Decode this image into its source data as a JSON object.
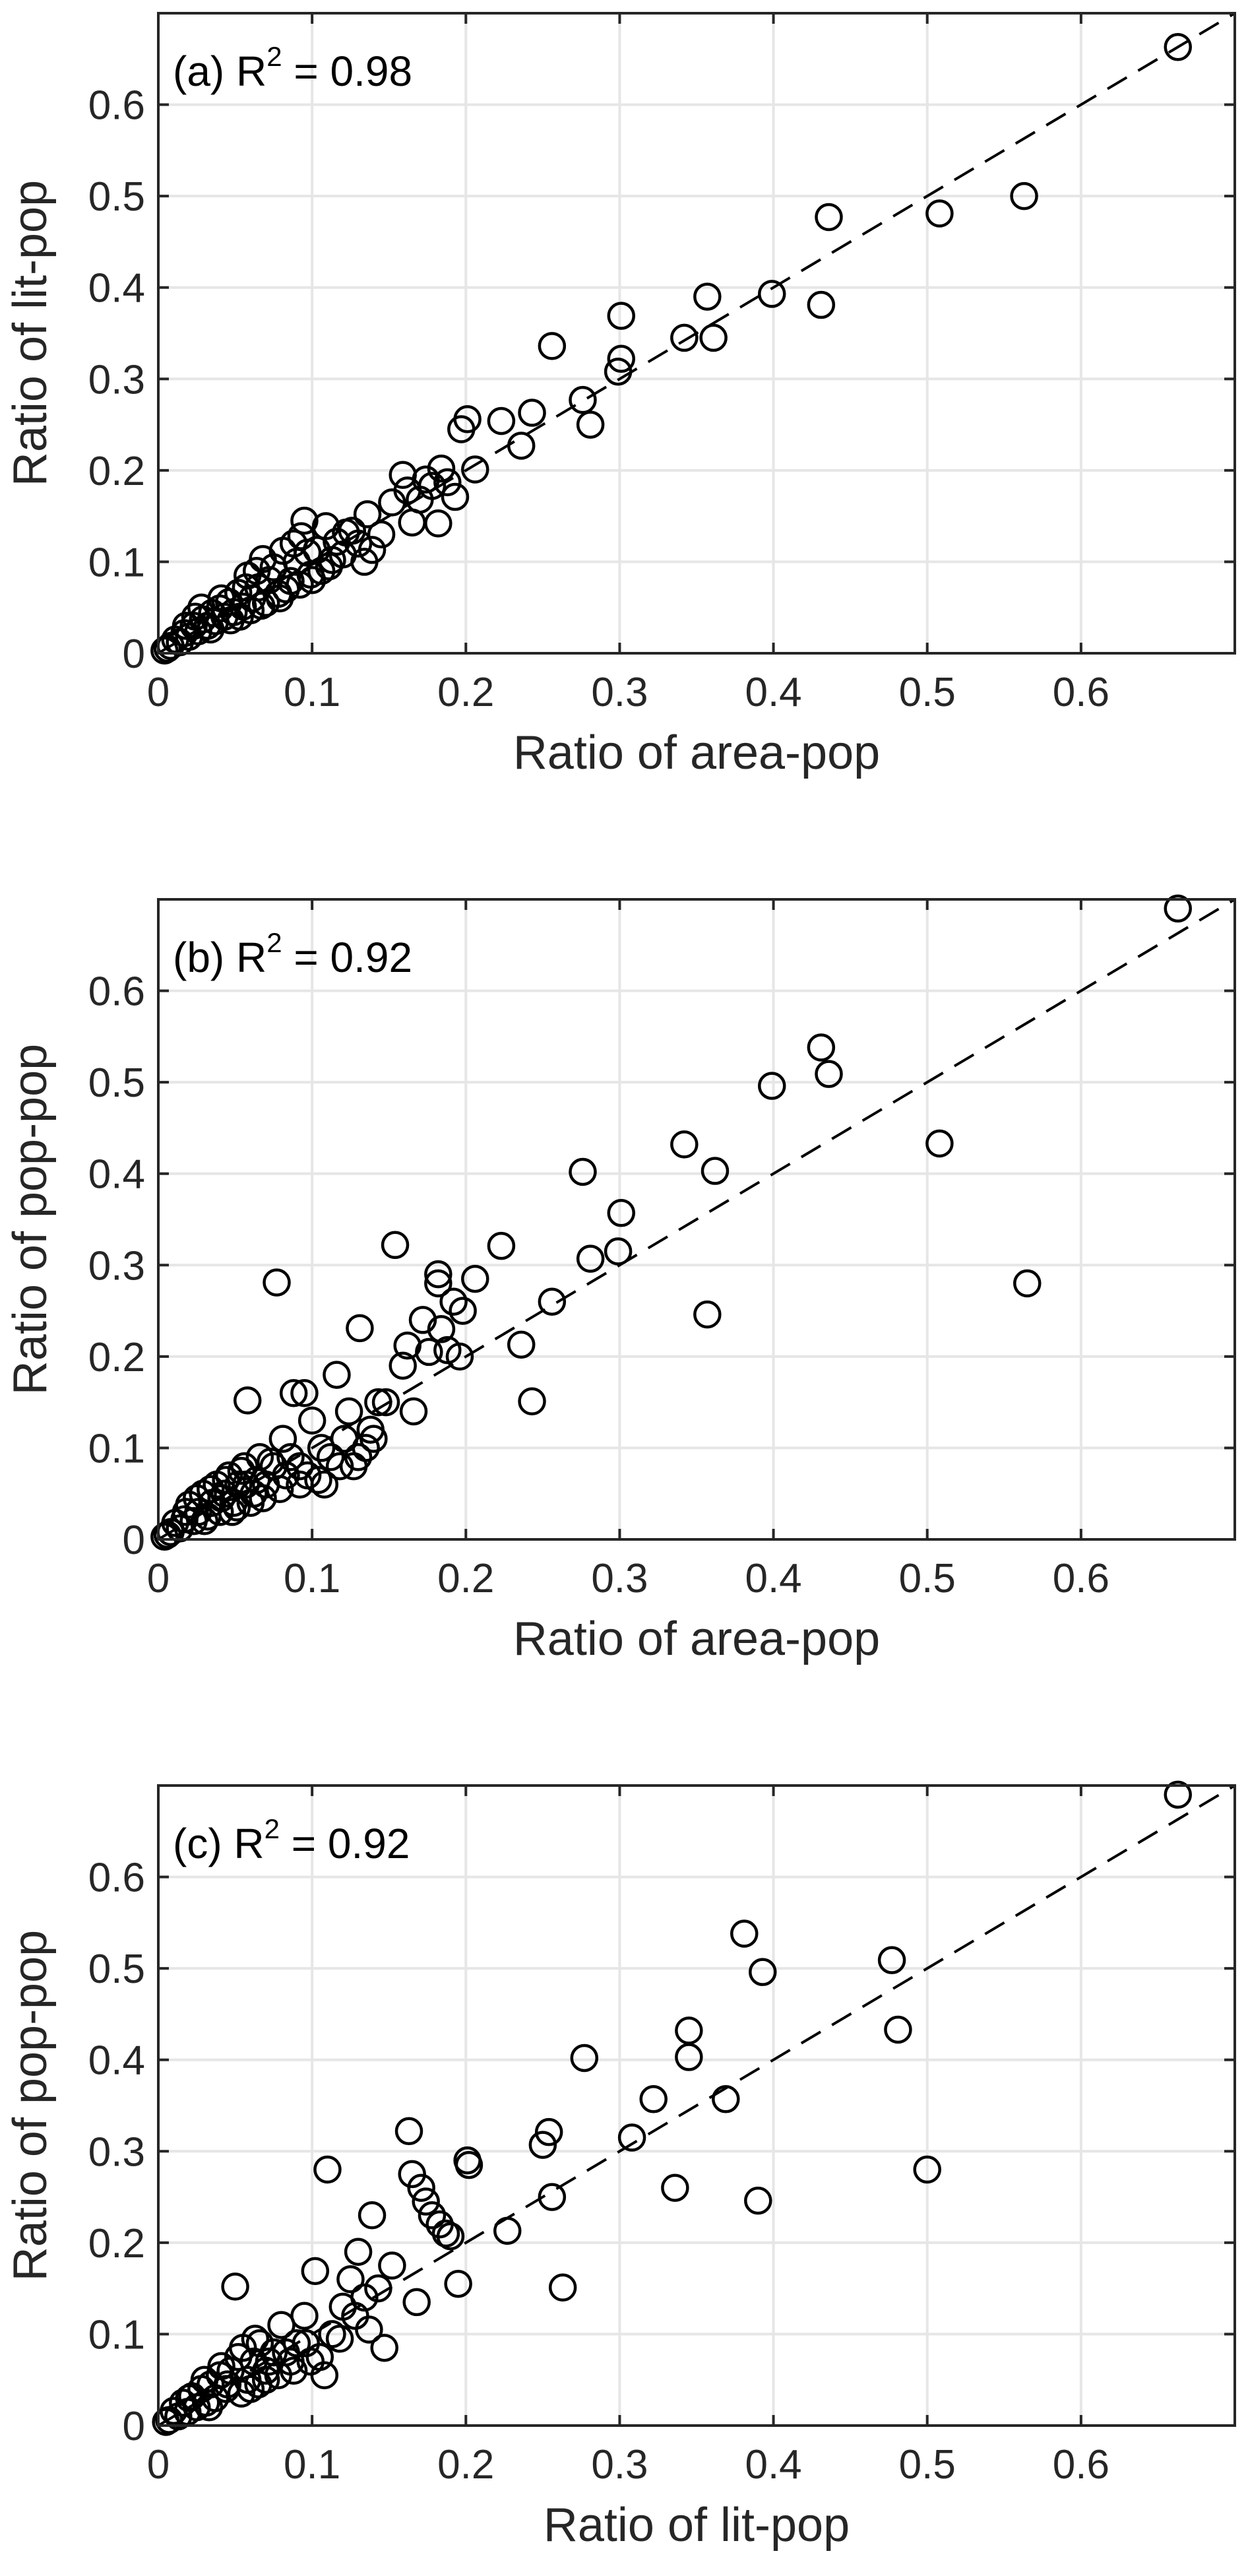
{
  "chart_data": [
    {
      "type": "scatter",
      "panel": "(a)",
      "annotation": {
        "prefix": "(a) R",
        "sup": "2",
        "suffix": " = 0.98"
      },
      "xlabel": "Ratio of area-pop",
      "ylabel": "Ratio of lit-pop",
      "xlim": [
        0,
        0.7
      ],
      "ylim": [
        0,
        0.7
      ],
      "xticks": [
        0,
        0.1,
        0.2,
        0.3,
        0.4,
        0.5,
        0.6
      ],
      "yticks": [
        0,
        0.1,
        0.2,
        0.3,
        0.4,
        0.5,
        0.6
      ],
      "xtick_labels": [
        "0",
        "0.1",
        "0.2",
        "0.3",
        "0.4",
        "0.5",
        "0.6"
      ],
      "ytick_labels": [
        "0",
        "0.1",
        "0.2",
        "0.3",
        "0.4",
        "0.5",
        "0.6"
      ],
      "grid": true,
      "reference_line": "y = x (dashed)",
      "points": [
        [
          0.663,
          0.663
        ],
        [
          0.563,
          0.5
        ],
        [
          0.508,
          0.481
        ],
        [
          0.436,
          0.477
        ],
        [
          0.431,
          0.381
        ],
        [
          0.399,
          0.393
        ],
        [
          0.361,
          0.345
        ],
        [
          0.357,
          0.39
        ],
        [
          0.342,
          0.345
        ],
        [
          0.301,
          0.369
        ],
        [
          0.301,
          0.322
        ],
        [
          0.299,
          0.308
        ],
        [
          0.281,
          0.25
        ],
        [
          0.276,
          0.277
        ],
        [
          0.256,
          0.336
        ],
        [
          0.243,
          0.263
        ],
        [
          0.236,
          0.227
        ],
        [
          0.223,
          0.254
        ],
        [
          0.206,
          0.201
        ],
        [
          0.201,
          0.256
        ],
        [
          0.197,
          0.245
        ],
        [
          0.193,
          0.171
        ],
        [
          0.188,
          0.187
        ],
        [
          0.184,
          0.202
        ],
        [
          0.182,
          0.142
        ],
        [
          0.178,
          0.183
        ],
        [
          0.174,
          0.19
        ],
        [
          0.17,
          0.168
        ],
        [
          0.165,
          0.143
        ],
        [
          0.162,
          0.178
        ],
        [
          0.159,
          0.195
        ],
        [
          0.152,
          0.165
        ],
        [
          0.145,
          0.13
        ],
        [
          0.139,
          0.113
        ],
        [
          0.136,
          0.152
        ],
        [
          0.13,
          0.12
        ],
        [
          0.126,
          0.134
        ],
        [
          0.12,
          0.108
        ],
        [
          0.116,
          0.122
        ],
        [
          0.111,
          0.095
        ],
        [
          0.109,
          0.139
        ],
        [
          0.103,
          0.113
        ],
        [
          0.099,
          0.086
        ],
        [
          0.095,
          0.145
        ],
        [
          0.093,
          0.128
        ],
        [
          0.09,
          0.1
        ],
        [
          0.086,
          0.079
        ],
        [
          0.081,
          0.112
        ],
        [
          0.078,
          0.065
        ],
        [
          0.075,
          0.094
        ],
        [
          0.072,
          0.08
        ],
        [
          0.068,
          0.103
        ],
        [
          0.065,
          0.072
        ],
        [
          0.061,
          0.06
        ],
        [
          0.058,
          0.085
        ],
        [
          0.055,
          0.051
        ],
        [
          0.052,
          0.066
        ],
        [
          0.049,
          0.045
        ],
        [
          0.046,
          0.056
        ],
        [
          0.043,
          0.04
        ],
        [
          0.04,
          0.049
        ],
        [
          0.037,
          0.035
        ],
        [
          0.035,
          0.044
        ],
        [
          0.032,
          0.03
        ],
        [
          0.029,
          0.037
        ],
        [
          0.026,
          0.024
        ],
        [
          0.023,
          0.03
        ],
        [
          0.02,
          0.018
        ],
        [
          0.017,
          0.022
        ],
        [
          0.014,
          0.012
        ],
        [
          0.011,
          0.015
        ],
        [
          0.008,
          0.008
        ],
        [
          0.006,
          0.005
        ],
        [
          0.004,
          0.003
        ],
        [
          0.028,
          0.05
        ],
        [
          0.041,
          0.06
        ],
        [
          0.057,
          0.072
        ],
        [
          0.064,
          0.09
        ],
        [
          0.083,
          0.07
        ],
        [
          0.088,
          0.12
        ],
        [
          0.097,
          0.11
        ],
        [
          0.106,
          0.09
        ],
        [
          0.113,
          0.102
        ],
        [
          0.122,
          0.132
        ],
        [
          0.134,
          0.1
        ],
        [
          0.047,
          0.036
        ],
        [
          0.06,
          0.047
        ],
        [
          0.07,
          0.055
        ],
        [
          0.079,
          0.06
        ],
        [
          0.092,
          0.075
        ],
        [
          0.1,
          0.08
        ],
        [
          0.018,
          0.03
        ],
        [
          0.024,
          0.04
        ],
        [
          0.034,
          0.026
        ],
        [
          0.053,
          0.04
        ],
        [
          0.067,
          0.052
        ]
      ]
    },
    {
      "type": "scatter",
      "panel": "(b)",
      "annotation": {
        "prefix": "(b) R",
        "sup": "2",
        "suffix": " = 0.92"
      },
      "xlabel": "Ratio of area-pop",
      "ylabel": "Ratio of pop-pop",
      "xlim": [
        0,
        0.7
      ],
      "ylim": [
        0,
        0.7
      ],
      "xticks": [
        0,
        0.1,
        0.2,
        0.3,
        0.4,
        0.5,
        0.6
      ],
      "yticks": [
        0,
        0.1,
        0.2,
        0.3,
        0.4,
        0.5,
        0.6
      ],
      "xtick_labels": [
        "0",
        "0.1",
        "0.2",
        "0.3",
        "0.4",
        "0.5",
        "0.6"
      ],
      "ytick_labels": [
        "0",
        "0.1",
        "0.2",
        "0.3",
        "0.4",
        "0.5",
        "0.6"
      ],
      "grid": true,
      "reference_line": "y = x (dashed)",
      "points": [
        [
          0.663,
          0.69
        ],
        [
          0.565,
          0.28
        ],
        [
          0.508,
          0.433
        ],
        [
          0.436,
          0.509
        ],
        [
          0.431,
          0.538
        ],
        [
          0.399,
          0.496
        ],
        [
          0.362,
          0.403
        ],
        [
          0.357,
          0.246
        ],
        [
          0.342,
          0.432
        ],
        [
          0.301,
          0.357
        ],
        [
          0.299,
          0.315
        ],
        [
          0.281,
          0.307
        ],
        [
          0.276,
          0.402
        ],
        [
          0.256,
          0.26
        ],
        [
          0.243,
          0.151
        ],
        [
          0.236,
          0.213
        ],
        [
          0.223,
          0.321
        ],
        [
          0.206,
          0.285
        ],
        [
          0.198,
          0.25
        ],
        [
          0.196,
          0.2
        ],
        [
          0.192,
          0.26
        ],
        [
          0.188,
          0.207
        ],
        [
          0.184,
          0.23
        ],
        [
          0.182,
          0.29
        ],
        [
          0.182,
          0.28
        ],
        [
          0.176,
          0.205
        ],
        [
          0.172,
          0.24
        ],
        [
          0.166,
          0.14
        ],
        [
          0.162,
          0.212
        ],
        [
          0.159,
          0.19
        ],
        [
          0.154,
          0.322
        ],
        [
          0.148,
          0.15
        ],
        [
          0.143,
          0.15
        ],
        [
          0.138,
          0.12
        ],
        [
          0.135,
          0.1
        ],
        [
          0.131,
          0.231
        ],
        [
          0.127,
          0.08
        ],
        [
          0.124,
          0.14
        ],
        [
          0.118,
          0.08
        ],
        [
          0.116,
          0.18
        ],
        [
          0.108,
          0.06
        ],
        [
          0.106,
          0.1
        ],
        [
          0.1,
          0.13
        ],
        [
          0.095,
          0.16
        ],
        [
          0.092,
          0.08
        ],
        [
          0.088,
          0.16
        ],
        [
          0.083,
          0.07
        ],
        [
          0.081,
          0.11
        ],
        [
          0.077,
          0.281
        ],
        [
          0.075,
          0.08
        ],
        [
          0.07,
          0.06
        ],
        [
          0.066,
          0.09
        ],
        [
          0.062,
          0.05
        ],
        [
          0.058,
          0.152
        ],
        [
          0.056,
          0.08
        ],
        [
          0.052,
          0.06
        ],
        [
          0.049,
          0.04
        ],
        [
          0.046,
          0.07
        ],
        [
          0.043,
          0.05
        ],
        [
          0.04,
          0.03
        ],
        [
          0.038,
          0.06
        ],
        [
          0.035,
          0.04
        ],
        [
          0.032,
          0.025
        ],
        [
          0.029,
          0.05
        ],
        [
          0.026,
          0.03
        ],
        [
          0.023,
          0.02
        ],
        [
          0.02,
          0.038
        ],
        [
          0.017,
          0.022
        ],
        [
          0.014,
          0.012
        ],
        [
          0.011,
          0.018
        ],
        [
          0.008,
          0.008
        ],
        [
          0.006,
          0.005
        ],
        [
          0.004,
          0.003
        ],
        [
          0.025,
          0.045
        ],
        [
          0.034,
          0.055
        ],
        [
          0.044,
          0.065
        ],
        [
          0.054,
          0.075
        ],
        [
          0.064,
          0.065
        ],
        [
          0.073,
          0.085
        ],
        [
          0.086,
          0.09
        ],
        [
          0.097,
          0.07
        ],
        [
          0.112,
          0.09
        ],
        [
          0.121,
          0.11
        ],
        [
          0.13,
          0.09
        ],
        [
          0.14,
          0.11
        ],
        [
          0.048,
          0.03
        ],
        [
          0.06,
          0.04
        ],
        [
          0.068,
          0.045
        ],
        [
          0.079,
          0.055
        ],
        [
          0.092,
          0.06
        ],
        [
          0.104,
          0.065
        ],
        [
          0.018,
          0.03
        ],
        [
          0.03,
          0.02
        ],
        [
          0.041,
          0.045
        ],
        [
          0.051,
          0.035
        ],
        [
          0.057,
          0.06
        ]
      ]
    },
    {
      "type": "scatter",
      "panel": "(c)",
      "annotation": {
        "prefix": "(c) R",
        "sup": "2",
        "suffix": " = 0.92"
      },
      "xlabel": "Ratio of lit-pop",
      "ylabel": "Ratio of pop-pop",
      "xlim": [
        0,
        0.7
      ],
      "ylim": [
        0,
        0.7
      ],
      "xticks": [
        0,
        0.1,
        0.2,
        0.3,
        0.4,
        0.5,
        0.6
      ],
      "yticks": [
        0,
        0.1,
        0.2,
        0.3,
        0.4,
        0.5,
        0.6
      ],
      "xtick_labels": [
        "0",
        "0.1",
        "0.2",
        "0.3",
        "0.4",
        "0.5",
        "0.6"
      ],
      "ytick_labels": [
        "0",
        "0.1",
        "0.2",
        "0.3",
        "0.4",
        "0.5",
        "0.6"
      ],
      "grid": true,
      "reference_line": "y = x (dashed)",
      "points": [
        [
          0.663,
          0.69
        ],
        [
          0.5,
          0.28
        ],
        [
          0.481,
          0.433
        ],
        [
          0.477,
          0.509
        ],
        [
          0.393,
          0.496
        ],
        [
          0.39,
          0.246
        ],
        [
          0.381,
          0.538
        ],
        [
          0.369,
          0.357
        ],
        [
          0.345,
          0.432
        ],
        [
          0.345,
          0.403
        ],
        [
          0.336,
          0.26
        ],
        [
          0.322,
          0.357
        ],
        [
          0.308,
          0.315
        ],
        [
          0.277,
          0.402
        ],
        [
          0.263,
          0.151
        ],
        [
          0.256,
          0.25
        ],
        [
          0.254,
          0.321
        ],
        [
          0.25,
          0.307
        ],
        [
          0.227,
          0.213
        ],
        [
          0.202,
          0.285
        ],
        [
          0.201,
          0.29
        ],
        [
          0.195,
          0.155
        ],
        [
          0.19,
          0.207
        ],
        [
          0.187,
          0.21
        ],
        [
          0.183,
          0.22
        ],
        [
          0.178,
          0.23
        ],
        [
          0.174,
          0.245
        ],
        [
          0.171,
          0.26
        ],
        [
          0.168,
          0.135
        ],
        [
          0.165,
          0.275
        ],
        [
          0.163,
          0.322
        ],
        [
          0.152,
          0.175
        ],
        [
          0.143,
          0.15
        ],
        [
          0.139,
          0.23
        ],
        [
          0.134,
          0.14
        ],
        [
          0.13,
          0.19
        ],
        [
          0.125,
          0.16
        ],
        [
          0.12,
          0.13
        ],
        [
          0.113,
          0.1
        ],
        [
          0.11,
          0.28
        ],
        [
          0.102,
          0.169
        ],
        [
          0.095,
          0.12
        ],
        [
          0.09,
          0.09
        ],
        [
          0.086,
          0.07
        ],
        [
          0.08,
          0.11
        ],
        [
          0.075,
          0.08
        ],
        [
          0.07,
          0.06
        ],
        [
          0.066,
          0.09
        ],
        [
          0.062,
          0.07
        ],
        [
          0.058,
          0.05
        ],
        [
          0.055,
          0.085
        ],
        [
          0.05,
          0.152
        ],
        [
          0.047,
          0.06
        ],
        [
          0.044,
          0.04
        ],
        [
          0.04,
          0.055
        ],
        [
          0.037,
          0.03
        ],
        [
          0.034,
          0.045
        ],
        [
          0.031,
          0.025
        ],
        [
          0.028,
          0.04
        ],
        [
          0.025,
          0.02
        ],
        [
          0.022,
          0.032
        ],
        [
          0.019,
          0.015
        ],
        [
          0.016,
          0.025
        ],
        [
          0.013,
          0.01
        ],
        [
          0.01,
          0.016
        ],
        [
          0.007,
          0.006
        ],
        [
          0.005,
          0.004
        ],
        [
          0.03,
          0.05
        ],
        [
          0.041,
          0.065
        ],
        [
          0.052,
          0.075
        ],
        [
          0.063,
          0.095
        ],
        [
          0.072,
          0.07
        ],
        [
          0.083,
          0.08
        ],
        [
          0.096,
          0.09
        ],
        [
          0.105,
          0.075
        ],
        [
          0.118,
          0.095
        ],
        [
          0.128,
          0.12
        ],
        [
          0.137,
          0.105
        ],
        [
          0.147,
          0.085
        ],
        [
          0.054,
          0.035
        ],
        [
          0.065,
          0.045
        ],
        [
          0.078,
          0.055
        ],
        [
          0.088,
          0.06
        ],
        [
          0.099,
          0.07
        ],
        [
          0.108,
          0.055
        ],
        [
          0.02,
          0.03
        ],
        [
          0.033,
          0.02
        ],
        [
          0.045,
          0.045
        ],
        [
          0.06,
          0.04
        ],
        [
          0.07,
          0.05
        ]
      ]
    }
  ]
}
